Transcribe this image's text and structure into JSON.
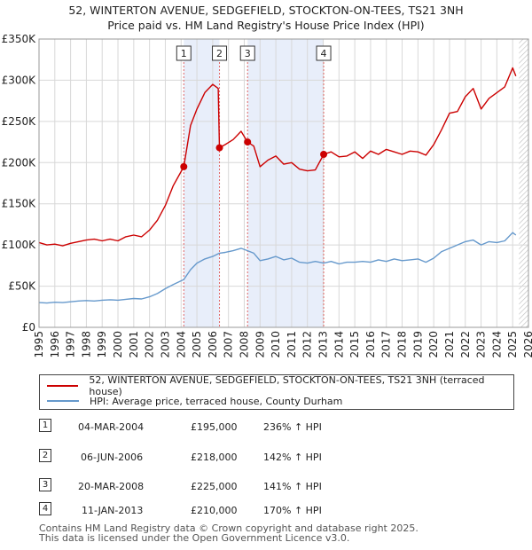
{
  "title_line1": "52, WINTERTON AVENUE, SEDGEFIELD, STOCKTON-ON-TEES, TS21 3NH",
  "title_line2": "Price paid vs. HM Land Registry's House Price Index (HPI)",
  "colors": {
    "property": "#cc0000",
    "hpi": "#6699cc",
    "shade": "#e8eefa",
    "grid": "#d8d8d8",
    "marker_line": "#e06666"
  },
  "chart_data": {
    "type": "line",
    "title": "Price paid vs. HM Land Registry's House Price Index (HPI)",
    "xlim": [
      1995,
      2026
    ],
    "ylim": [
      0,
      350000
    ],
    "y_ticks": [
      0,
      50000,
      100000,
      150000,
      200000,
      250000,
      300000,
      350000
    ],
    "y_tick_labels": [
      "£0",
      "£50K",
      "£100K",
      "£150K",
      "£200K",
      "£250K",
      "£300K",
      "£350K"
    ],
    "x_ticks": [
      1995,
      1996,
      1997,
      1998,
      1999,
      2000,
      2001,
      2002,
      2003,
      2004,
      2005,
      2006,
      2007,
      2008,
      2009,
      2010,
      2011,
      2012,
      2013,
      2014,
      2015,
      2016,
      2017,
      2018,
      2019,
      2020,
      2021,
      2022,
      2023,
      2024,
      2025,
      2026
    ],
    "x_tick_labels": [
      "1995",
      "1996",
      "1997",
      "1998",
      "1999",
      "2000",
      "2001",
      "2002",
      "2003",
      "2004",
      "2005",
      "2006",
      "2007",
      "2008",
      "2009",
      "2010",
      "2011",
      "2012",
      "2013",
      "2014",
      "2015",
      "2016",
      "2017",
      "2018",
      "2019",
      "2020",
      "2021",
      "2022",
      "2023",
      "2024",
      "2025",
      "2026"
    ],
    "shaded_ranges": [
      [
        2004.17,
        2006.43
      ],
      [
        2008.21,
        2013.03
      ]
    ],
    "future_hatch_from": 2025.4,
    "series": [
      {
        "name": "52, WINTERTON AVENUE, SEDGEFIELD, STOCKTON-ON-TEES, TS21 3NH (terraced house)",
        "x": [
          1995,
          1995.5,
          1996,
          1996.5,
          1997,
          1997.5,
          1998,
          1998.5,
          1999,
          1999.5,
          2000,
          2000.5,
          2001,
          2001.5,
          2002,
          2002.5,
          2003,
          2003.5,
          2004.17,
          2004.6,
          2005,
          2005.5,
          2006,
          2006.35,
          2006.43,
          2006.8,
          2007.3,
          2007.8,
          2008.21,
          2008.6,
          2009,
          2009.5,
          2010,
          2010.5,
          2011,
          2011.5,
          2012,
          2012.5,
          2013.03,
          2013.5,
          2014,
          2014.5,
          2015,
          2015.5,
          2016,
          2016.5,
          2017,
          2017.5,
          2018,
          2018.5,
          2019,
          2019.5,
          2020,
          2020.5,
          2021,
          2021.5,
          2022,
          2022.5,
          2023,
          2023.5,
          2024,
          2024.5,
          2025,
          2025.2
        ],
        "y": [
          103000,
          100000,
          101000,
          99000,
          102000,
          104000,
          106000,
          107000,
          105000,
          107000,
          105000,
          110000,
          112000,
          110000,
          118000,
          130000,
          148000,
          172000,
          195000,
          245000,
          265000,
          285000,
          295000,
          290000,
          218000,
          222000,
          228000,
          238000,
          225000,
          220000,
          195000,
          203000,
          208000,
          198000,
          200000,
          192000,
          190000,
          191000,
          210000,
          213000,
          207000,
          208000,
          213000,
          205000,
          214000,
          210000,
          216000,
          213000,
          210000,
          214000,
          213000,
          209000,
          222000,
          240000,
          260000,
          262000,
          280000,
          290000,
          265000,
          278000,
          285000,
          292000,
          315000,
          305000
        ]
      },
      {
        "name": "HPI: Average price, terraced house, County Durham",
        "x": [
          1995,
          1995.5,
          1996,
          1996.5,
          1997,
          1997.5,
          1998,
          1998.5,
          1999,
          1999.5,
          2000,
          2000.5,
          2001,
          2001.5,
          2002,
          2002.5,
          2003,
          2003.5,
          2004.17,
          2004.6,
          2005,
          2005.5,
          2006,
          2006.43,
          2006.8,
          2007.3,
          2007.8,
          2008.21,
          2008.6,
          2009,
          2009.5,
          2010,
          2010.5,
          2011,
          2011.5,
          2012,
          2012.5,
          2013.03,
          2013.5,
          2014,
          2014.5,
          2015,
          2015.5,
          2016,
          2016.5,
          2017,
          2017.5,
          2018,
          2018.5,
          2019,
          2019.5,
          2020,
          2020.5,
          2021,
          2021.5,
          2022,
          2022.5,
          2023,
          2023.5,
          2024,
          2024.5,
          2025,
          2025.2
        ],
        "y": [
          30000,
          29500,
          30500,
          30000,
          31000,
          32000,
          32500,
          32000,
          33000,
          33500,
          33000,
          34000,
          35000,
          34500,
          37000,
          41000,
          47000,
          52000,
          58000,
          70000,
          78000,
          83000,
          86000,
          90000,
          91000,
          93000,
          96000,
          93000,
          90000,
          81000,
          83000,
          86000,
          82000,
          84000,
          79000,
          78000,
          80000,
          78000,
          80000,
          77000,
          79000,
          79000,
          80000,
          79000,
          82000,
          80000,
          83000,
          81000,
          82000,
          83000,
          79000,
          84000,
          92000,
          96000,
          100000,
          104000,
          106000,
          100000,
          104000,
          103000,
          105000,
          115000,
          112000
        ]
      }
    ],
    "sales": [
      {
        "label": "1",
        "x": 2004.17,
        "price": 195000
      },
      {
        "label": "2",
        "x": 2006.43,
        "price": 218000
      },
      {
        "label": "3",
        "x": 2008.21,
        "price": 225000
      },
      {
        "label": "4",
        "x": 2013.03,
        "price": 210000
      }
    ]
  },
  "legend": {
    "property_label": "52, WINTERTON AVENUE, SEDGEFIELD, STOCKTON-ON-TEES, TS21 3NH (terraced house)",
    "hpi_label": "HPI: Average price, terraced house, County Durham"
  },
  "sales_table": [
    {
      "num": "1",
      "date": "04-MAR-2004",
      "price": "£195,000",
      "hpi": "236% ↑ HPI"
    },
    {
      "num": "2",
      "date": "06-JUN-2006",
      "price": "£218,000",
      "hpi": "142% ↑ HPI"
    },
    {
      "num": "3",
      "date": "20-MAR-2008",
      "price": "£225,000",
      "hpi": "141% ↑ HPI"
    },
    {
      "num": "4",
      "date": "11-JAN-2013",
      "price": "£210,000",
      "hpi": "170% ↑ HPI"
    }
  ],
  "footer_line1": "Contains HM Land Registry data © Crown copyright and database right 2025.",
  "footer_line2": "This data is licensed under the Open Government Licence v3.0."
}
